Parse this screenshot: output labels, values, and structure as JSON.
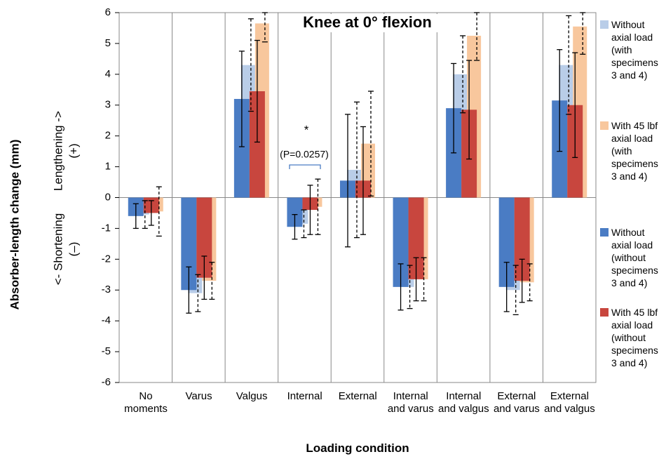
{
  "chart_data": {
    "type": "bar",
    "title": "Knee at 0° flexion",
    "x_label": "Loading condition",
    "y_label": "Absorber-length change (mm)",
    "annotations": [
      "Lengthening  ->",
      "(+)",
      "<-  Shortening",
      "(–)",
      "*",
      "(P=0.0257)"
    ],
    "categories": [
      "No moments",
      "Varus",
      "Valgus",
      "Internal",
      "External",
      "Internal and varus",
      "Internal and valgus",
      "External and varus",
      "External and valgus"
    ],
    "series": [
      {
        "name": "Without axial load (with specimens 3 and 4)",
        "color": "#b9cde8",
        "error_line": "dashed",
        "values": [
          -0.55,
          -3.1,
          4.3,
          -0.85,
          0.9,
          -2.9,
          4.0,
          -3.0,
          4.3
        ],
        "errors": [
          0.45,
          0.6,
          1.5,
          0.45,
          2.2,
          0.7,
          1.25,
          0.8,
          1.6
        ]
      },
      {
        "name": "With 45 lbf axial load (with specimens 3 and 4)",
        "color": "#f8c79d",
        "error_line": "dashed",
        "values": [
          -0.45,
          -2.7,
          5.65,
          -0.3,
          1.75,
          -2.65,
          5.25,
          -2.75,
          5.55
        ],
        "errors": [
          0.8,
          0.6,
          0.6,
          0.9,
          1.7,
          0.7,
          0.8,
          0.6,
          0.9
        ]
      },
      {
        "name": "Without axial load (without specimens 3 and 4)",
        "color": "#4a7cc4",
        "error_line": "solid",
        "values": [
          -0.6,
          -3.0,
          3.2,
          -0.95,
          0.55,
          -2.9,
          2.9,
          -2.9,
          3.15
        ],
        "errors": [
          0.4,
          0.75,
          1.55,
          0.4,
          2.15,
          0.75,
          1.45,
          0.8,
          1.65
        ]
      },
      {
        "name": "With 45 lbf axial load (without specimens 3 and 4)",
        "color": "#c8463e",
        "error_line": "solid",
        "values": [
          -0.5,
          -2.6,
          3.45,
          -0.4,
          0.55,
          -2.65,
          2.85,
          -2.7,
          3.0
        ],
        "errors": [
          0.4,
          0.7,
          1.65,
          0.8,
          1.75,
          0.7,
          1.6,
          0.7,
          1.7
        ]
      }
    ],
    "ylim": [
      -6,
      6
    ],
    "yticks": [
      -6,
      -5,
      -4,
      -3,
      -2,
      -1,
      0,
      1,
      2,
      3,
      4,
      5,
      6
    ]
  }
}
